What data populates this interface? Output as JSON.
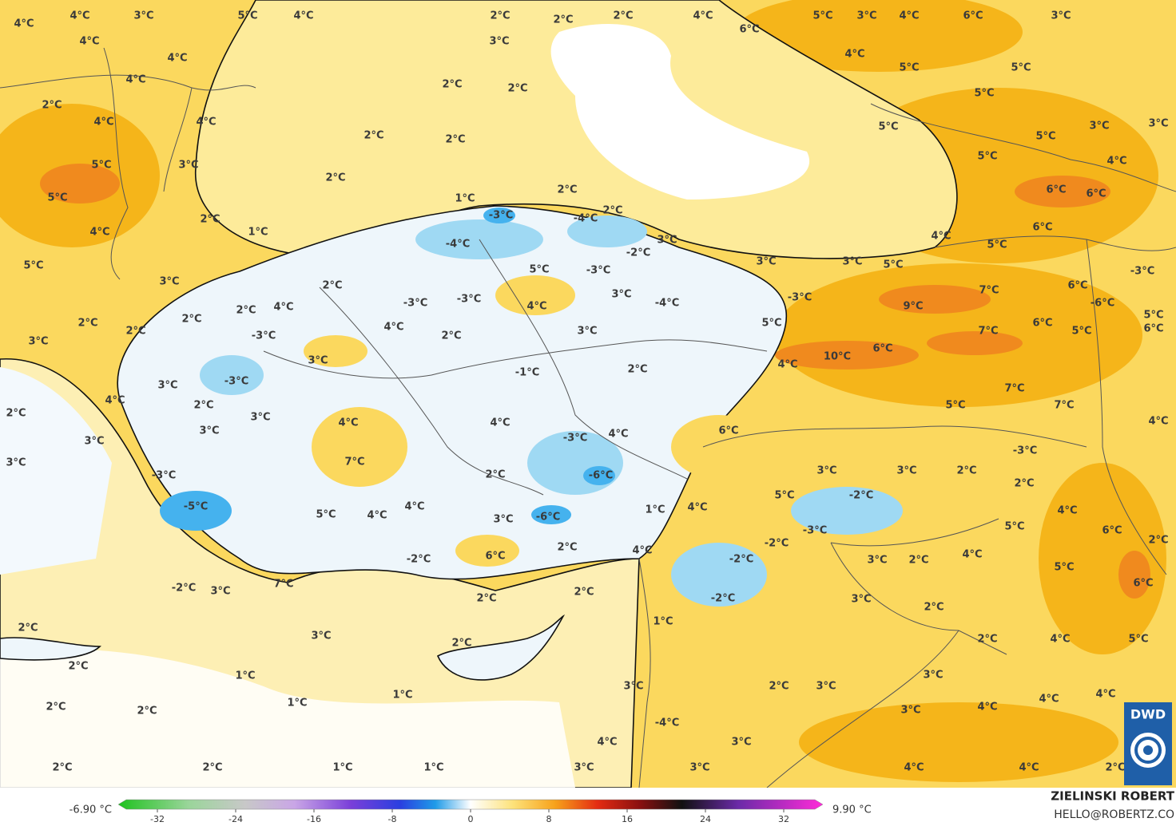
{
  "map": {
    "labels": [
      "4°C",
      "4°C",
      "3°C",
      "5°C",
      "4°C",
      "4°C",
      "4°C",
      "4°C",
      "2°C",
      "4°C",
      "4°C",
      "5°C",
      "5°C",
      "3°C",
      "4°C",
      "5°C",
      "3°C",
      "2°C",
      "3°C",
      "2°C",
      "2°C",
      "4°C",
      "2°C",
      "2°C",
      "-3°C",
      "4°C",
      "-3°C",
      "-3°C",
      "2°C",
      "5°C",
      "4°C",
      "-4°C",
      "-3°C",
      "-4°C",
      "2°C",
      "-2°C",
      "3°C",
      "-3°C",
      "3°C",
      "3°C",
      "-4°C",
      "2°C",
      "-1°C",
      "3°C",
      "-3°C",
      "3°C",
      "4°C",
      "2°C",
      "2°C",
      "3°C",
      "3°C",
      "4°C",
      "4°C",
      "-3°C",
      "4°C",
      "6°C",
      "7°C",
      "3°C",
      "3°C",
      "-3°C",
      "2°C",
      "-6°C",
      "-5°C",
      "5°C",
      "4°C",
      "4°C",
      "3°C",
      "-6°C",
      "1°C",
      "4°C",
      "5°C",
      "3°C",
      "-2°C",
      "3°C",
      "2°C",
      "2°C",
      "4°C",
      "-3°C",
      "-2°C",
      "6°C",
      "-2°C",
      "2°C",
      "4°C",
      "-2°C",
      "3°C",
      "2°C",
      "4°C",
      "5°C",
      "6°C",
      "2°C",
      "5°C",
      "6°C",
      "7°C",
      "3°C",
      "-2°C",
      "2°C",
      "2°C",
      "-2°C",
      "3°C",
      "2°C",
      "2°C",
      "3°C",
      "2°C",
      "2°C",
      "4°C",
      "5°C",
      "2°C",
      "1°C",
      "1°C",
      "3°C",
      "2°C",
      "3°C",
      "3°C",
      "1°C",
      "1°C",
      "2°C",
      "2°C",
      "3°C",
      "4°C",
      "4°C",
      "4°C",
      "-4°C",
      "3°C",
      "4°C",
      "2°C",
      "2°C",
      "1°C",
      "1°C",
      "3°C",
      "3°C",
      "4°C",
      "4°C",
      "2°C",
      "2°C",
      "3°C",
      "2°C",
      "2°C",
      "4°C",
      "6°C",
      "5°C",
      "3°C",
      "4°C",
      "6°C",
      "3°C",
      "4°C",
      "5°C",
      "5°C",
      "5°C",
      "5°C",
      "5°C",
      "3°C",
      "3°C",
      "5°C",
      "4°C",
      "6°C",
      "6°C",
      "4°C",
      "5°C",
      "6°C",
      "5°C",
      "3°C",
      "3°C",
      "7°C",
      "6°C",
      "-3°C",
      "9°C",
      "-3°C",
      "5°C",
      "7°C",
      "6°C",
      "5°C",
      "-6°C",
      "5°C",
      "6°C",
      "10°C",
      "6°C",
      "4°C",
      "7°C",
      "7°C",
      "5°C",
      "4°C",
      "-3°C",
      "2°C",
      "2°C",
      "2°C",
      "2°C",
      "2°C",
      "1°C",
      "2°C",
      "2°C",
      "1°C"
    ]
  },
  "legend": {
    "min_label": "-6.90 °C",
    "max_label": "9.90 °C",
    "range": [
      -36,
      36
    ],
    "ticks": [
      -32,
      -24,
      -16,
      -8,
      0,
      8,
      16,
      24,
      32
    ]
  },
  "credit": {
    "author": "ZIELINSKI ROBERT",
    "contact": "HELLO@ROBERTZ.CO"
  },
  "logo": "DWD"
}
